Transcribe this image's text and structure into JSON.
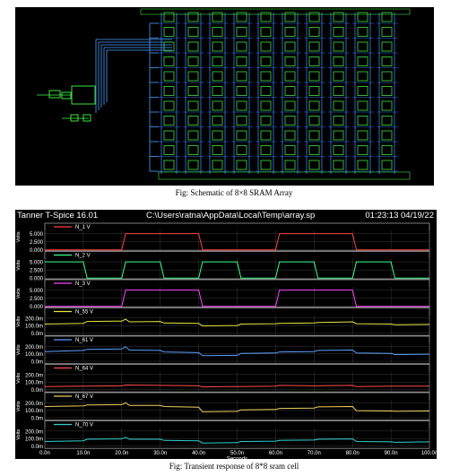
{
  "schematic": {
    "caption": "Fig: Schematic of 8×8 SRAM Array"
  },
  "waveform_window": {
    "app_title": "Tanner T-Spice 16.01",
    "file_path": "C:\\Users\\ratna\\AppData\\Local\\Temp\\array.sp",
    "timestamp": "01:23:13 04/19/22",
    "caption": "Fig: Transient response of 8*8 sram cell",
    "colors": {
      "background": "#000000",
      "panel_border": "#9a9a9a",
      "grid": "#3a3a3a",
      "text": "#ffffff"
    }
  },
  "chart_data": {
    "type": "line",
    "xlabel": "Seconds",
    "ylabel": "Volts",
    "xlim": [
      0,
      100
    ],
    "x_ticks": [
      "0.0n",
      "10.0n",
      "20.0n",
      "30.0n",
      "40.0n",
      "50.0n",
      "60.0n",
      "70.0n",
      "80.0n",
      "90.0n",
      "100.0n"
    ],
    "grid": true,
    "panels": [
      {
        "name": "N_1 V",
        "color": "#ff4040",
        "ylim": [
          0,
          6
        ],
        "yticks": [
          "5.000",
          "2.500",
          "0.000"
        ],
        "ytick_values": [
          5,
          2.5,
          0
        ],
        "x": [
          0,
          20,
          21,
          40,
          41,
          60,
          61,
          80,
          81,
          100
        ],
        "y": [
          0,
          0,
          5,
          5,
          0,
          0,
          5,
          5,
          0,
          0
        ]
      },
      {
        "name": "N_2 V",
        "color": "#3cff8a",
        "ylim": [
          0,
          6
        ],
        "yticks": [
          "5.000",
          "2.500",
          "0.000"
        ],
        "ytick_values": [
          5,
          2.5,
          0
        ],
        "x": [
          0,
          10,
          11,
          20,
          21,
          30,
          31,
          40,
          41,
          50,
          51,
          60,
          61,
          70,
          71,
          80,
          81,
          90,
          91,
          100
        ],
        "y": [
          5,
          5,
          0,
          0,
          5,
          5,
          0,
          0,
          5,
          5,
          0,
          0,
          5,
          5,
          0,
          0,
          5,
          5,
          0,
          0
        ]
      },
      {
        "name": "N_3 V",
        "color": "#ff44ff",
        "ylim": [
          0,
          6
        ],
        "yticks": [
          "5.000",
          "2.500",
          "0.000"
        ],
        "ytick_values": [
          5,
          2.5,
          0
        ],
        "x": [
          0,
          20,
          21,
          40,
          41,
          60,
          61,
          80,
          81,
          100
        ],
        "y": [
          0,
          0,
          5,
          5,
          0,
          0,
          5,
          5,
          0,
          0
        ]
      },
      {
        "name": "N_55 V",
        "color": "#e6e640",
        "ylim": [
          -20,
          240
        ],
        "yticks": [
          "200.0m",
          "100.0m",
          "0.0m"
        ],
        "ytick_values": [
          200,
          100,
          0
        ],
        "x": [
          0,
          10,
          11,
          20,
          21,
          22,
          30,
          31,
          40,
          41,
          50,
          51,
          60,
          61,
          70,
          71,
          80,
          81,
          90,
          91,
          100
        ],
        "y": [
          120,
          130,
          155,
          160,
          185,
          150,
          155,
          135,
          130,
          95,
          100,
          120,
          125,
          130,
          135,
          140,
          150,
          125,
          120,
          110,
          115
        ]
      },
      {
        "name": "N_61 V",
        "color": "#5aa0ff",
        "ylim": [
          -20,
          240
        ],
        "yticks": [
          "200.0m",
          "100.0m",
          "0.0m"
        ],
        "ytick_values": [
          200,
          100,
          0
        ],
        "x": [
          0,
          10,
          11,
          20,
          21,
          22,
          30,
          31,
          40,
          41,
          50,
          51,
          60,
          61,
          70,
          71,
          80,
          81,
          90,
          91,
          100
        ],
        "y": [
          130,
          145,
          160,
          165,
          195,
          150,
          145,
          125,
          115,
          75,
          80,
          105,
          110,
          125,
          130,
          145,
          150,
          110,
          105,
          90,
          95
        ]
      },
      {
        "name": "N_64 V",
        "color": "#ff4a4a",
        "ylim": [
          -20,
          240
        ],
        "yticks": [
          "200.0m",
          "100.0m",
          "0.0m"
        ],
        "ytick_values": [
          200,
          100,
          0
        ],
        "x": [
          0,
          10,
          20,
          21,
          30,
          40,
          41,
          50,
          60,
          61,
          70,
          80,
          81,
          90,
          100
        ],
        "y": [
          40,
          45,
          50,
          60,
          55,
          50,
          35,
          40,
          45,
          55,
          50,
          55,
          40,
          45,
          45
        ]
      },
      {
        "name": "N_67 V",
        "color": "#f0d060",
        "ylim": [
          -20,
          240
        ],
        "yticks": [
          "200.0m",
          "100.0m",
          "0.0m"
        ],
        "ytick_values": [
          200,
          100,
          0
        ],
        "x": [
          0,
          10,
          11,
          20,
          21,
          22,
          30,
          31,
          40,
          41,
          50,
          51,
          60,
          61,
          70,
          71,
          80,
          81,
          90,
          91,
          100
        ],
        "y": [
          150,
          160,
          170,
          175,
          200,
          165,
          165,
          150,
          140,
          80,
          85,
          105,
          110,
          125,
          130,
          145,
          150,
          95,
          90,
          85,
          90
        ]
      },
      {
        "name": "N_70 V",
        "color": "#30d0d0",
        "ylim": [
          -20,
          240
        ],
        "yticks": [
          "200.0m",
          "100.0m",
          "0.0m"
        ],
        "ytick_values": [
          200,
          100,
          0
        ],
        "x": [
          0,
          10,
          11,
          20,
          21,
          22,
          30,
          31,
          40,
          41,
          50,
          51,
          60,
          61,
          70,
          71,
          80,
          81,
          90,
          91,
          100
        ],
        "y": [
          60,
          70,
          90,
          95,
          115,
          90,
          90,
          75,
          70,
          40,
          45,
          60,
          65,
          75,
          80,
          90,
          95,
          60,
          55,
          50,
          55
        ]
      }
    ]
  }
}
